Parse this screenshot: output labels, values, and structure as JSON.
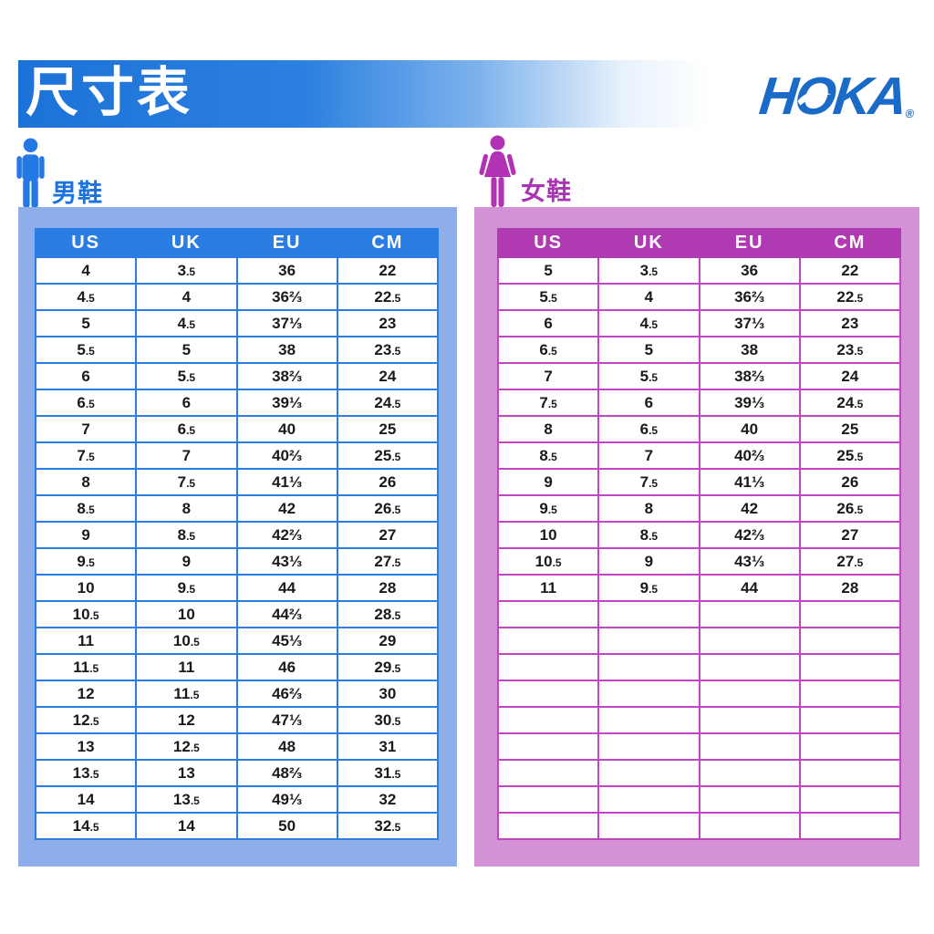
{
  "header": {
    "title": "尺寸表",
    "brand": {
      "h": "H",
      "o": "O",
      "ka": "KA",
      "registered": "®"
    },
    "brand_color": "#1a6bc8",
    "banner_color": "#1d72d8"
  },
  "sections": [
    {
      "id": "men",
      "label": "男鞋",
      "figure_icon": "man-icon",
      "colors": {
        "figure": "#2478e4",
        "label": "#1a73e0",
        "panel": "#8fade9",
        "header": "#2a7de2",
        "border": "#2a7de2"
      },
      "columns": [
        "US",
        "UK",
        "EU",
        "CM"
      ],
      "rows": [
        [
          "4",
          "3.5",
          "36",
          "22"
        ],
        [
          "4.5",
          "4",
          "36⅔",
          "22.5"
        ],
        [
          "5",
          "4.5",
          "37⅓",
          "23"
        ],
        [
          "5.5",
          "5",
          "38",
          "23.5"
        ],
        [
          "6",
          "5.5",
          "38⅔",
          "24"
        ],
        [
          "6.5",
          "6",
          "39⅓",
          "24.5"
        ],
        [
          "7",
          "6.5",
          "40",
          "25"
        ],
        [
          "7.5",
          "7",
          "40⅔",
          "25.5"
        ],
        [
          "8",
          "7.5",
          "41⅓",
          "26"
        ],
        [
          "8.5",
          "8",
          "42",
          "26.5"
        ],
        [
          "9",
          "8.5",
          "42⅔",
          "27"
        ],
        [
          "9.5",
          "9",
          "43⅓",
          "27.5"
        ],
        [
          "10",
          "9.5",
          "44",
          "28"
        ],
        [
          "10.5",
          "10",
          "44⅔",
          "28.5"
        ],
        [
          "11",
          "10.5",
          "45⅓",
          "29"
        ],
        [
          "11.5",
          "11",
          "46",
          "29.5"
        ],
        [
          "12",
          "11.5",
          "46⅔",
          "30"
        ],
        [
          "12.5",
          "12",
          "47⅓",
          "30.5"
        ],
        [
          "13",
          "12.5",
          "48",
          "31"
        ],
        [
          "13.5",
          "13",
          "48⅔",
          "31.5"
        ],
        [
          "14",
          "13.5",
          "49⅓",
          "32"
        ],
        [
          "14.5",
          "14",
          "50",
          "32.5"
        ]
      ]
    },
    {
      "id": "women",
      "label": "女鞋",
      "figure_icon": "woman-icon",
      "colors": {
        "figure": "#b133b3",
        "label": "#a935b5",
        "panel": "#d392d6",
        "header": "#b03ab2",
        "border": "#c544c5"
      },
      "columns": [
        "US",
        "UK",
        "EU",
        "CM"
      ],
      "rows": [
        [
          "5",
          "3.5",
          "36",
          "22"
        ],
        [
          "5.5",
          "4",
          "36⅔",
          "22.5"
        ],
        [
          "6",
          "4.5",
          "37⅓",
          "23"
        ],
        [
          "6.5",
          "5",
          "38",
          "23.5"
        ],
        [
          "7",
          "5.5",
          "38⅔",
          "24"
        ],
        [
          "7.5",
          "6",
          "39⅓",
          "24.5"
        ],
        [
          "8",
          "6.5",
          "40",
          "25"
        ],
        [
          "8.5",
          "7",
          "40⅔",
          "25.5"
        ],
        [
          "9",
          "7.5",
          "41⅓",
          "26"
        ],
        [
          "9.5",
          "8",
          "42",
          "26.5"
        ],
        [
          "10",
          "8.5",
          "42⅔",
          "27"
        ],
        [
          "10.5",
          "9",
          "43⅓",
          "27.5"
        ],
        [
          "11",
          "9.5",
          "44",
          "28"
        ],
        [
          "",
          "",
          "",
          ""
        ],
        [
          "",
          "",
          "",
          ""
        ],
        [
          "",
          "",
          "",
          ""
        ],
        [
          "",
          "",
          "",
          ""
        ],
        [
          "",
          "",
          "",
          ""
        ],
        [
          "",
          "",
          "",
          ""
        ],
        [
          "",
          "",
          "",
          ""
        ],
        [
          "",
          "",
          "",
          ""
        ],
        [
          "",
          "",
          "",
          ""
        ]
      ]
    }
  ]
}
